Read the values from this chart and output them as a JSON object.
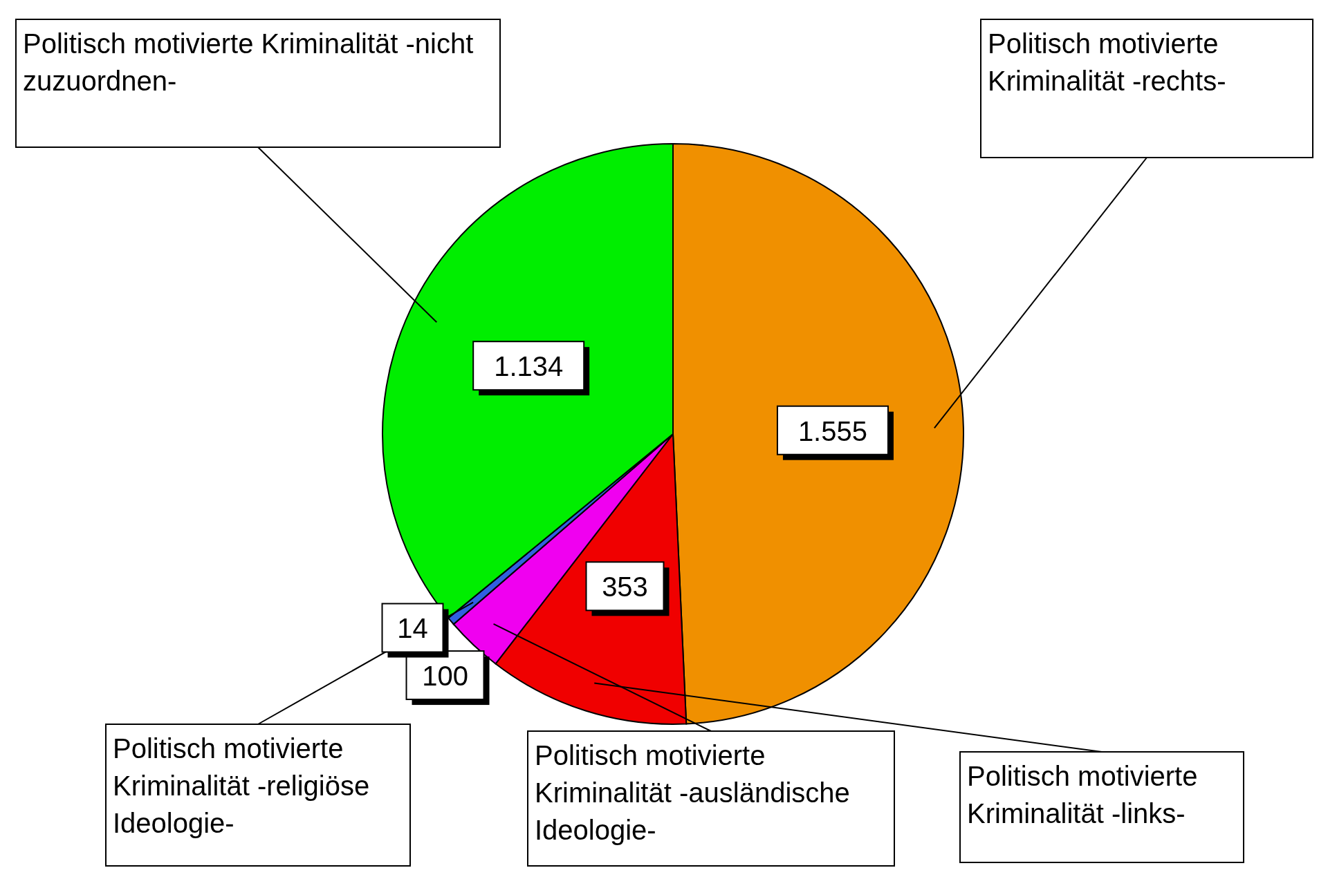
{
  "chart_data": {
    "type": "pie",
    "categories": [
      "Politisch motivierte Kriminalität -rechts-",
      "Politisch motivierte Kriminalität -links-",
      "Politisch motivierte Kriminalität -ausländische Ideologie-",
      "Politisch motivierte Kriminalität -religiöse Ideologie-",
      "Politisch motivierte Kriminalität -nicht zuzuordnen-"
    ],
    "values": [
      1555,
      353,
      100,
      14,
      1134
    ],
    "value_labels": [
      "1.555",
      "353",
      "100",
      "14",
      "1.134"
    ],
    "colors": [
      "#f09000",
      "#f00000",
      "#f000f0",
      "#3060e0",
      "#00ee00"
    ]
  }
}
